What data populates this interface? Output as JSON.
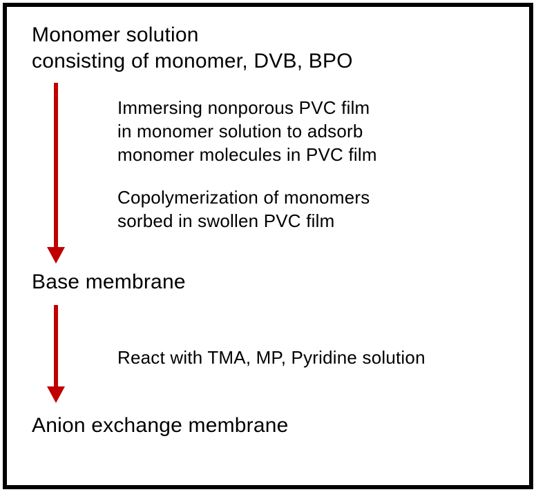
{
  "diagram": {
    "type": "flowchart",
    "border_color": "#000000",
    "border_width": 6,
    "background_color": "#ffffff",
    "arrow_color": "#c00000",
    "arrow_line_width": 6,
    "arrow_head_width": 26,
    "arrow_head_height": 24,
    "label_fontsize": 30,
    "label_color": "#000000",
    "description_fontsize": 26,
    "description_color": "#000000",
    "steps": {
      "step1": {
        "label_line1": "Monomer solution",
        "label_line2": "consisting of monomer, DVB, BPO"
      },
      "transition1": {
        "desc1_line1": "Immersing nonporous PVC film",
        "desc1_line2": "in monomer solution to adsorb",
        "desc1_line3": "monomer molecules in PVC film",
        "desc2_line1": "Copolymerization of monomers",
        "desc2_line2": "sorbed in swollen PVC film"
      },
      "step2": {
        "label": "Base membrane"
      },
      "transition2": {
        "desc_line1": "React with TMA, MP, Pyridine solution"
      },
      "step3": {
        "label": "Anion exchange membrane"
      }
    }
  }
}
